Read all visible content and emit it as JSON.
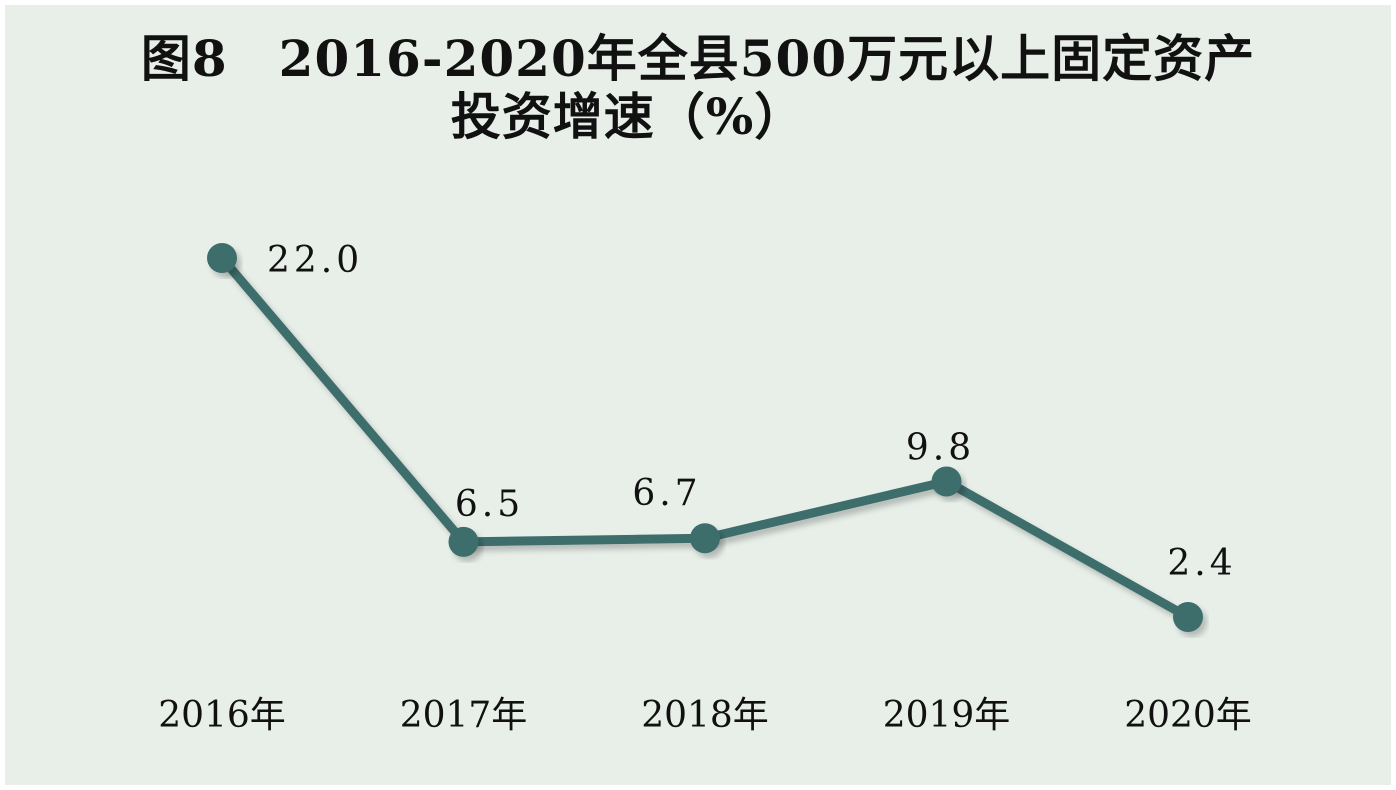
{
  "chart_data": {
    "type": "line",
    "title_line1": "图8　2016-2020年全县500万元以上固定资产",
    "title_line2": "投资增速（%）",
    "categories": [
      "2016年",
      "2017年",
      "2018年",
      "2019年",
      "2020年"
    ],
    "values": [
      22.0,
      6.5,
      6.7,
      9.8,
      2.4
    ],
    "data_labels": [
      "22.0",
      "6.5",
      "6.7",
      "9.8",
      "2.4"
    ],
    "ylim": [
      -6,
      26
    ],
    "grid": false,
    "legend": "none",
    "colors": {
      "line": "#3d6e6c",
      "marker": "#3d6e6c",
      "background": "#e8efe9",
      "text": "#111111"
    }
  }
}
